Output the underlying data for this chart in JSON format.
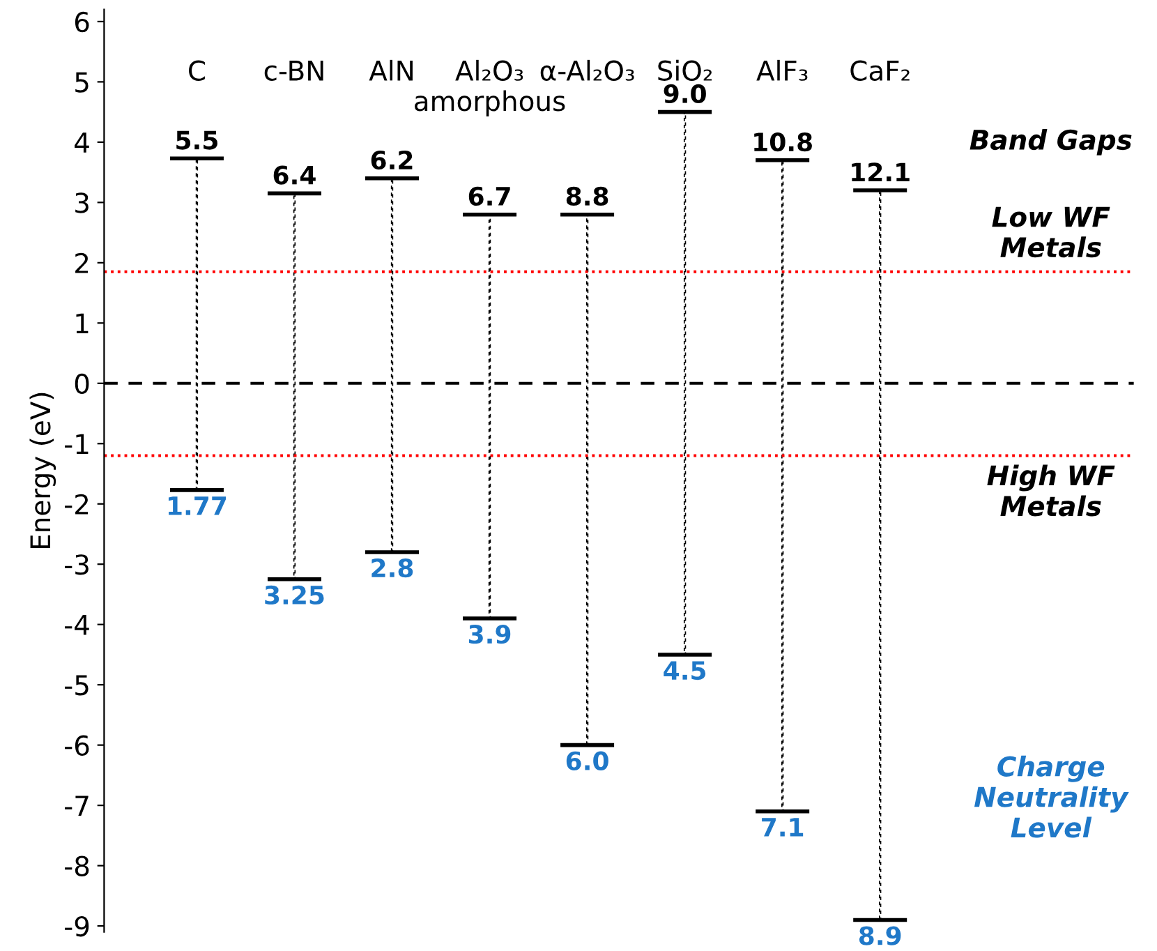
{
  "chart_data": {
    "type": "bar",
    "ylabel": "Energy (eV)",
    "categories": [
      "C",
      "c-BN",
      "AlN",
      "Al₂O₃\namorphous",
      "α-Al₂O₃",
      "SiO₂",
      "AlF₃",
      "CaF₂"
    ],
    "base": [
      -1.77,
      -3.25,
      -2.8,
      -3.9,
      -6.0,
      -4.5,
      -7.1,
      -8.9
    ],
    "values": [
      5.5,
      6.4,
      6.2,
      6.7,
      8.8,
      9.0,
      10.8,
      12.1
    ],
    "value_labels": [
      "5.5",
      "6.4",
      "6.2",
      "6.7",
      "8.8",
      "9.0",
      "10.8",
      "12.1"
    ],
    "color": "#000000",
    "ylim": [
      -9.1,
      6.2
    ],
    "yticks": [
      -9,
      -8,
      -7,
      -6,
      -5,
      -4,
      -3,
      -2,
      -1,
      0,
      1,
      2,
      3,
      4,
      5,
      6
    ],
    "ref_lines": [
      {
        "axis": "y",
        "value": 1.85,
        "label": "Low WF\nMetals",
        "color": "#ff0000",
        "line_style": "dotted"
      },
      {
        "axis": "y",
        "value": 0,
        "color": "#000000",
        "line_style": "dashed"
      },
      {
        "axis": "y",
        "value": -1.2,
        "label": "High WF\nMetals",
        "color": "#ff0000",
        "line_style": "dotted"
      }
    ],
    "annotations": [
      "Band Gaps",
      "1.77",
      "3.25",
      "2.8",
      "3.9",
      "6.0",
      "4.5",
      "7.1",
      "8.9",
      "Charge\nNeutrality\nLevel"
    ],
    "grid": false,
    "legend": false
  }
}
